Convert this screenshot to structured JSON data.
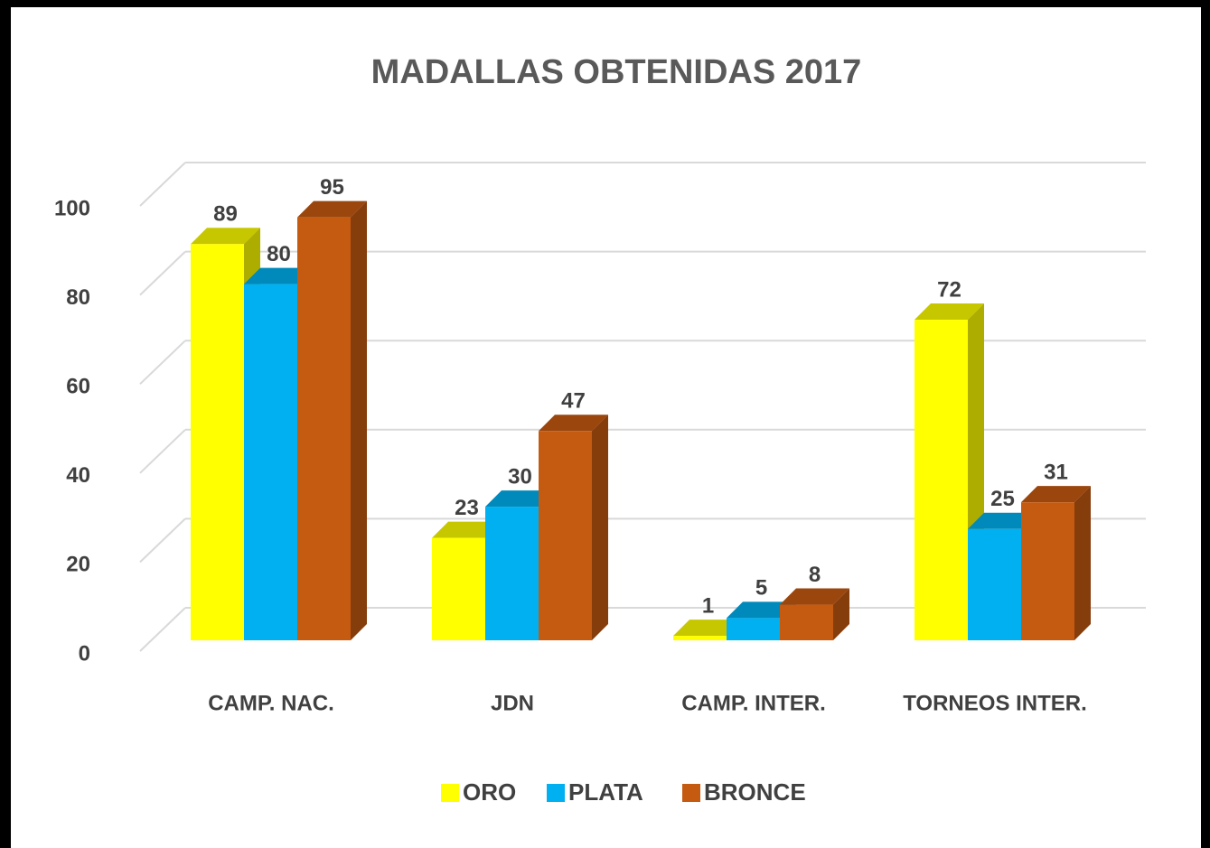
{
  "chart_data": {
    "type": "bar3d",
    "title": "MADALLAS OBTENIDAS 2017",
    "categories": [
      "CAMP. NAC.",
      "JDN",
      "CAMP. INTER.",
      "TORNEOS INTER."
    ],
    "series": [
      {
        "name": "ORO",
        "color": "#ffff00",
        "values": [
          89,
          23,
          1,
          72
        ]
      },
      {
        "name": "PLATA",
        "color": "#00b0f0",
        "values": [
          80,
          30,
          5,
          25
        ]
      },
      {
        "name": "BRONCE",
        "color": "#c55a11",
        "values": [
          95,
          47,
          8,
          31
        ]
      }
    ],
    "ylim": [
      0,
      100
    ],
    "yticks": [
      0,
      20,
      40,
      60,
      80,
      100
    ],
    "grid": true,
    "legend": "bottom"
  }
}
